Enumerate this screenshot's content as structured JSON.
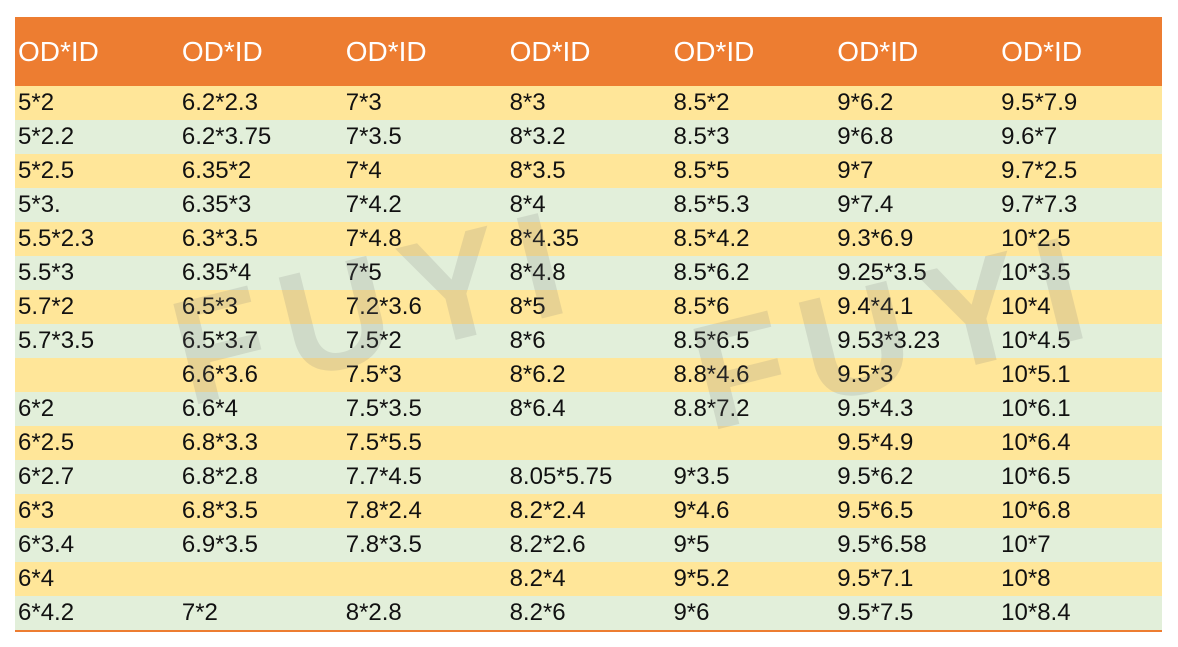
{
  "table": {
    "header": [
      "OD*ID",
      "OD*ID",
      "OD*ID",
      "OD*ID",
      "OD*ID",
      "OD*ID",
      "OD*ID"
    ],
    "rows": [
      [
        "5*2",
        "6.2*2.3",
        "7*3",
        "8*3",
        "8.5*2",
        "9*6.2",
        "9.5*7.9"
      ],
      [
        "5*2.2",
        "6.2*3.75",
        "7*3.5",
        "8*3.2",
        "8.5*3",
        "9*6.8",
        "9.6*7"
      ],
      [
        "5*2.5",
        "6.35*2",
        "7*4",
        "8*3.5",
        "8.5*5",
        "9*7",
        "9.7*2.5"
      ],
      [
        "5*3.",
        "6.35*3",
        "7*4.2",
        "8*4",
        "8.5*5.3",
        "9*7.4",
        "9.7*7.3"
      ],
      [
        "5.5*2.3",
        "6.3*3.5",
        "7*4.8",
        "8*4.35",
        "8.5*4.2",
        "9.3*6.9",
        "10*2.5"
      ],
      [
        "5.5*3",
        "6.35*4",
        "7*5",
        "8*4.8",
        "8.5*6.2",
        "9.25*3.5",
        "10*3.5"
      ],
      [
        "5.7*2",
        "6.5*3",
        "7.2*3.6",
        "8*5",
        "8.5*6",
        "9.4*4.1",
        "10*4"
      ],
      [
        "5.7*3.5",
        "6.5*3.7",
        "7.5*2",
        "8*6",
        "8.5*6.5",
        "9.53*3.23",
        "10*4.5"
      ],
      [
        null,
        "6.6*3.6",
        "7.5*3",
        "8*6.2",
        "8.8*4.6",
        "9.5*3",
        "10*5.1"
      ],
      [
        "6*2",
        "6.6*4",
        "7.5*3.5",
        "8*6.4",
        "8.8*7.2",
        "9.5*4.3",
        "10*6.1"
      ],
      [
        "6*2.5",
        "6.8*3.3",
        "7.5*5.5",
        null,
        null,
        "9.5*4.9",
        "10*6.4"
      ],
      [
        "6*2.7",
        "6.8*2.8",
        "7.7*4.5",
        "8.05*5.75",
        "9*3.5",
        "9.5*6.2",
        "10*6.5"
      ],
      [
        "6*3",
        "6.8*3.5",
        "7.8*2.4",
        "8.2*2.4",
        "9*4.6",
        "9.5*6.5",
        "10*6.8"
      ],
      [
        "6*3.4",
        "6.9*3.5",
        "7.8*3.5",
        "8.2*2.6",
        "9*5",
        "9.5*6.58",
        "10*7"
      ],
      [
        "6*4",
        null,
        null,
        "8.2*4",
        "9*5.2",
        "9.5*7.1",
        "10*8"
      ],
      [
        "6*4.2",
        "7*2",
        "8*2.8",
        "8.2*6",
        "9*6",
        "9.5*7.5",
        "10*8.4"
      ]
    ]
  },
  "watermarks": [
    "FUYI",
    "FUYI"
  ]
}
